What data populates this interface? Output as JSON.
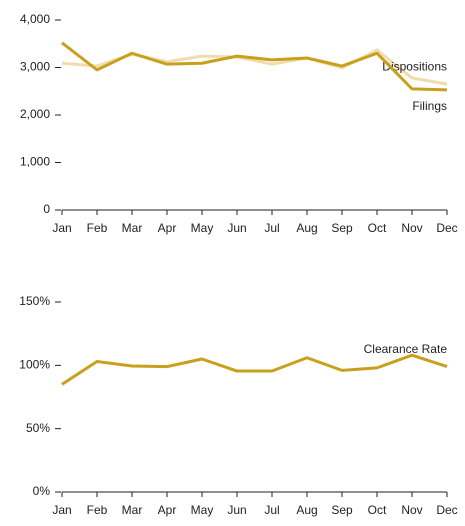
{
  "chart_data": [
    {
      "type": "line",
      "categories": [
        "Jan",
        "Feb",
        "Mar",
        "Apr",
        "May",
        "Jun",
        "Jul",
        "Aug",
        "Sep",
        "Oct",
        "Nov",
        "Dec"
      ],
      "series": [
        {
          "name": "Dispositions",
          "color": "#f0dcae",
          "values": [
            3090,
            3030,
            3280,
            3120,
            3240,
            3220,
            3070,
            3200,
            2990,
            3370,
            2780,
            2650
          ]
        },
        {
          "name": "Filings",
          "color": "#c9a01c",
          "values": [
            3520,
            2950,
            3300,
            3070,
            3090,
            3240,
            3160,
            3200,
            3030,
            3300,
            2550,
            2530
          ]
        }
      ],
      "ylim": [
        0,
        4000
      ],
      "yticks": [
        0,
        {
          "value": 1000,
          "label": "1,000"
        },
        {
          "value": 2000,
          "label": "2,000"
        },
        {
          "value": 3000,
          "label": "3,000"
        },
        {
          "value": 4000,
          "label": "4,000"
        }
      ]
    },
    {
      "type": "line",
      "categories": [
        "Jan",
        "Feb",
        "Mar",
        "Apr",
        "May",
        "Jun",
        "Jul",
        "Aug",
        "Sep",
        "Oct",
        "Nov",
        "Dec"
      ],
      "series": [
        {
          "name": "Clearance Rate",
          "color": "#c9a01c",
          "values": [
            85,
            103,
            99.5,
            99,
            105,
            95.5,
            95.5,
            106,
            96,
            98,
            108,
            99
          ]
        }
      ],
      "ylim": [
        0,
        150
      ],
      "yticks": [
        {
          "value": 0,
          "label": "0%"
        },
        {
          "value": 50,
          "label": "50%"
        },
        {
          "value": 100,
          "label": "100%"
        },
        {
          "value": 150,
          "label": "150%"
        }
      ]
    }
  ]
}
